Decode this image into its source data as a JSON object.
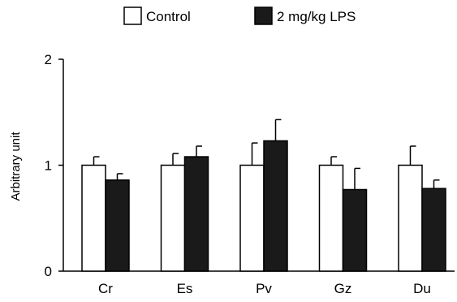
{
  "chart_data": {
    "type": "bar",
    "title": "",
    "xlabel": "",
    "ylabel": "Arbitrary unit",
    "ylim": [
      0,
      2
    ],
    "yticks": [
      0,
      1,
      2
    ],
    "grid": false,
    "legend_position": "top-center",
    "error_bars": true,
    "categories": [
      "Cr",
      "Es",
      "Pv",
      "Gz",
      "Du"
    ],
    "series": [
      {
        "name": "Control",
        "fill": "#ffffff",
        "stroke": "#000000",
        "values": [
          1.0,
          1.0,
          1.0,
          1.0,
          1.0
        ],
        "errors": [
          0.08,
          0.11,
          0.21,
          0.08,
          0.18
        ]
      },
      {
        "name": "2 mg/kg LPS",
        "fill": "#1a1a1a",
        "stroke": "#000000",
        "values": [
          0.86,
          1.08,
          1.23,
          0.77,
          0.78
        ],
        "errors": [
          0.06,
          0.1,
          0.2,
          0.2,
          0.08
        ]
      }
    ]
  }
}
